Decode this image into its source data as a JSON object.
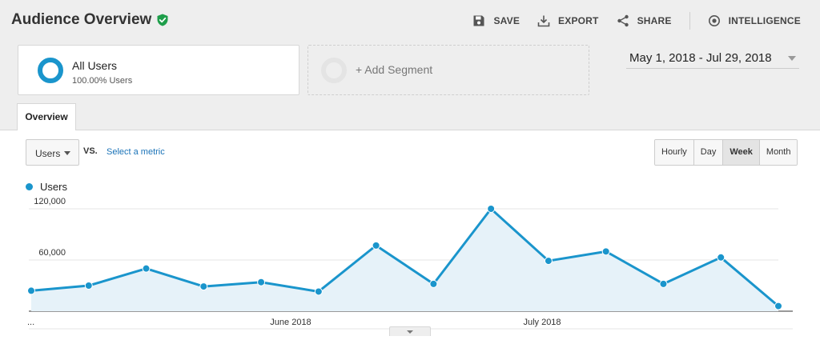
{
  "header": {
    "title": "Audience Overview",
    "actions": [
      {
        "label": "SAVE",
        "icon": "save-icon"
      },
      {
        "label": "EXPORT",
        "icon": "export-icon"
      },
      {
        "label": "SHARE",
        "icon": "share-icon"
      },
      {
        "label": "INTELLIGENCE",
        "icon": "intelligence-icon"
      }
    ]
  },
  "segments": {
    "all_users": {
      "name": "All Users",
      "detail": "100.00% Users"
    },
    "add_segment_label": "+ Add Segment"
  },
  "date_range": "May 1, 2018 - Jul 29, 2018",
  "tabs": {
    "overview": "Overview"
  },
  "controls": {
    "metric": "Users",
    "vs": "VS.",
    "select_metric": "Select a metric",
    "granularity": [
      "Hourly",
      "Day",
      "Week",
      "Month"
    ],
    "active_granularity": "Week"
  },
  "colors": {
    "accent": "#1a95cc",
    "area_fill": "#e6f2f9",
    "link": "#1a73b8"
  },
  "chart_data": {
    "type": "area",
    "title": "",
    "series": [
      {
        "name": "Users",
        "values": [
          24000,
          30000,
          50000,
          29000,
          34000,
          23000,
          77000,
          32000,
          120000,
          59000,
          70000,
          32000,
          63000,
          6000
        ]
      }
    ],
    "x_tick_labels": [
      "...",
      "June 2018",
      "July 2018"
    ],
    "y_tick_labels": [
      "60,000",
      "120,000"
    ],
    "ylim": [
      0,
      135000
    ],
    "grid": true
  }
}
